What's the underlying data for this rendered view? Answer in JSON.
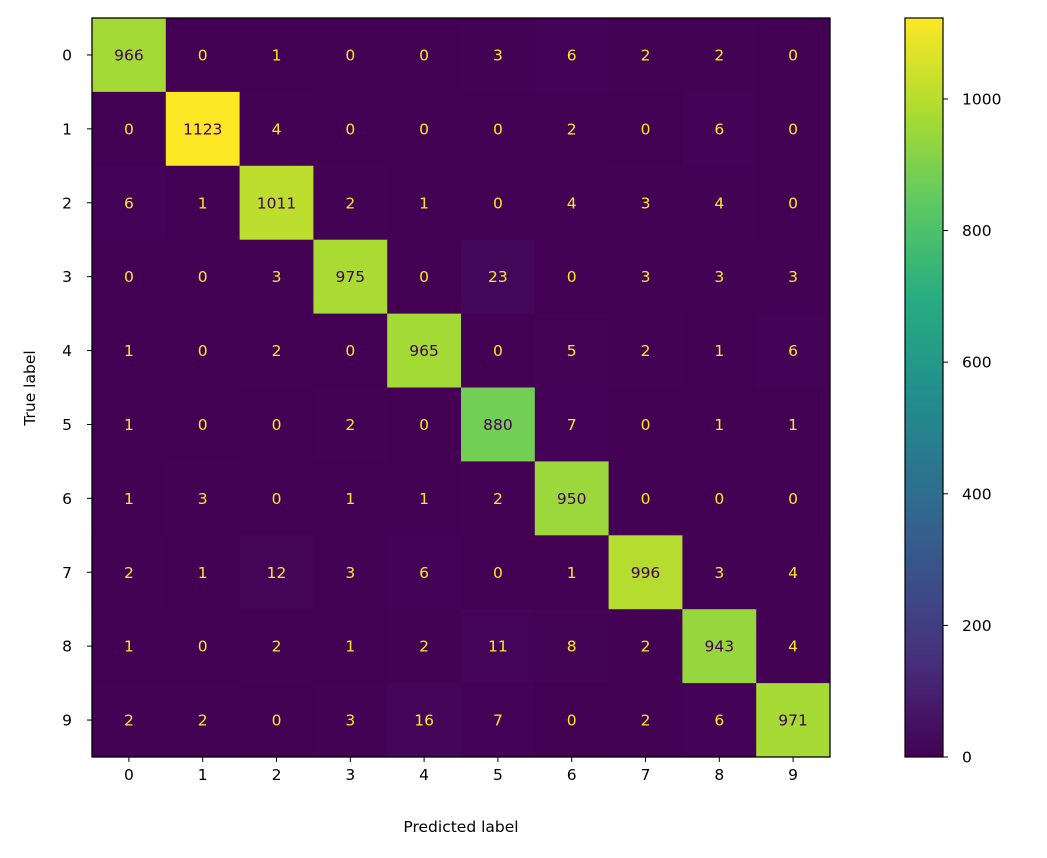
{
  "chart_data": {
    "type": "heatmap",
    "title": "",
    "xlabel": "Predicted label",
    "ylabel": "True label",
    "x_categories": [
      "0",
      "1",
      "2",
      "3",
      "4",
      "5",
      "6",
      "7",
      "8",
      "9"
    ],
    "y_categories": [
      "0",
      "1",
      "2",
      "3",
      "4",
      "5",
      "6",
      "7",
      "8",
      "9"
    ],
    "matrix": [
      [
        966,
        0,
        1,
        0,
        0,
        3,
        6,
        2,
        2,
        0
      ],
      [
        0,
        1123,
        4,
        0,
        0,
        0,
        2,
        0,
        6,
        0
      ],
      [
        6,
        1,
        1011,
        2,
        1,
        0,
        4,
        3,
        4,
        0
      ],
      [
        0,
        0,
        3,
        975,
        0,
        23,
        0,
        3,
        3,
        3
      ],
      [
        1,
        0,
        2,
        0,
        965,
        0,
        5,
        2,
        1,
        6
      ],
      [
        1,
        0,
        0,
        2,
        0,
        880,
        7,
        0,
        1,
        1
      ],
      [
        1,
        3,
        0,
        1,
        1,
        2,
        950,
        0,
        0,
        0
      ],
      [
        2,
        1,
        12,
        3,
        6,
        0,
        1,
        996,
        3,
        4
      ],
      [
        1,
        0,
        2,
        1,
        2,
        11,
        8,
        2,
        943,
        4
      ],
      [
        2,
        2,
        0,
        3,
        16,
        7,
        0,
        2,
        6,
        971
      ]
    ],
    "colormap": "viridis",
    "colorbar": {
      "range": [
        0,
        1123
      ],
      "ticks": [
        0,
        200,
        400,
        600,
        800,
        1000
      ]
    },
    "text_colors": {
      "low": "#fde725",
      "high": "#440154"
    }
  }
}
